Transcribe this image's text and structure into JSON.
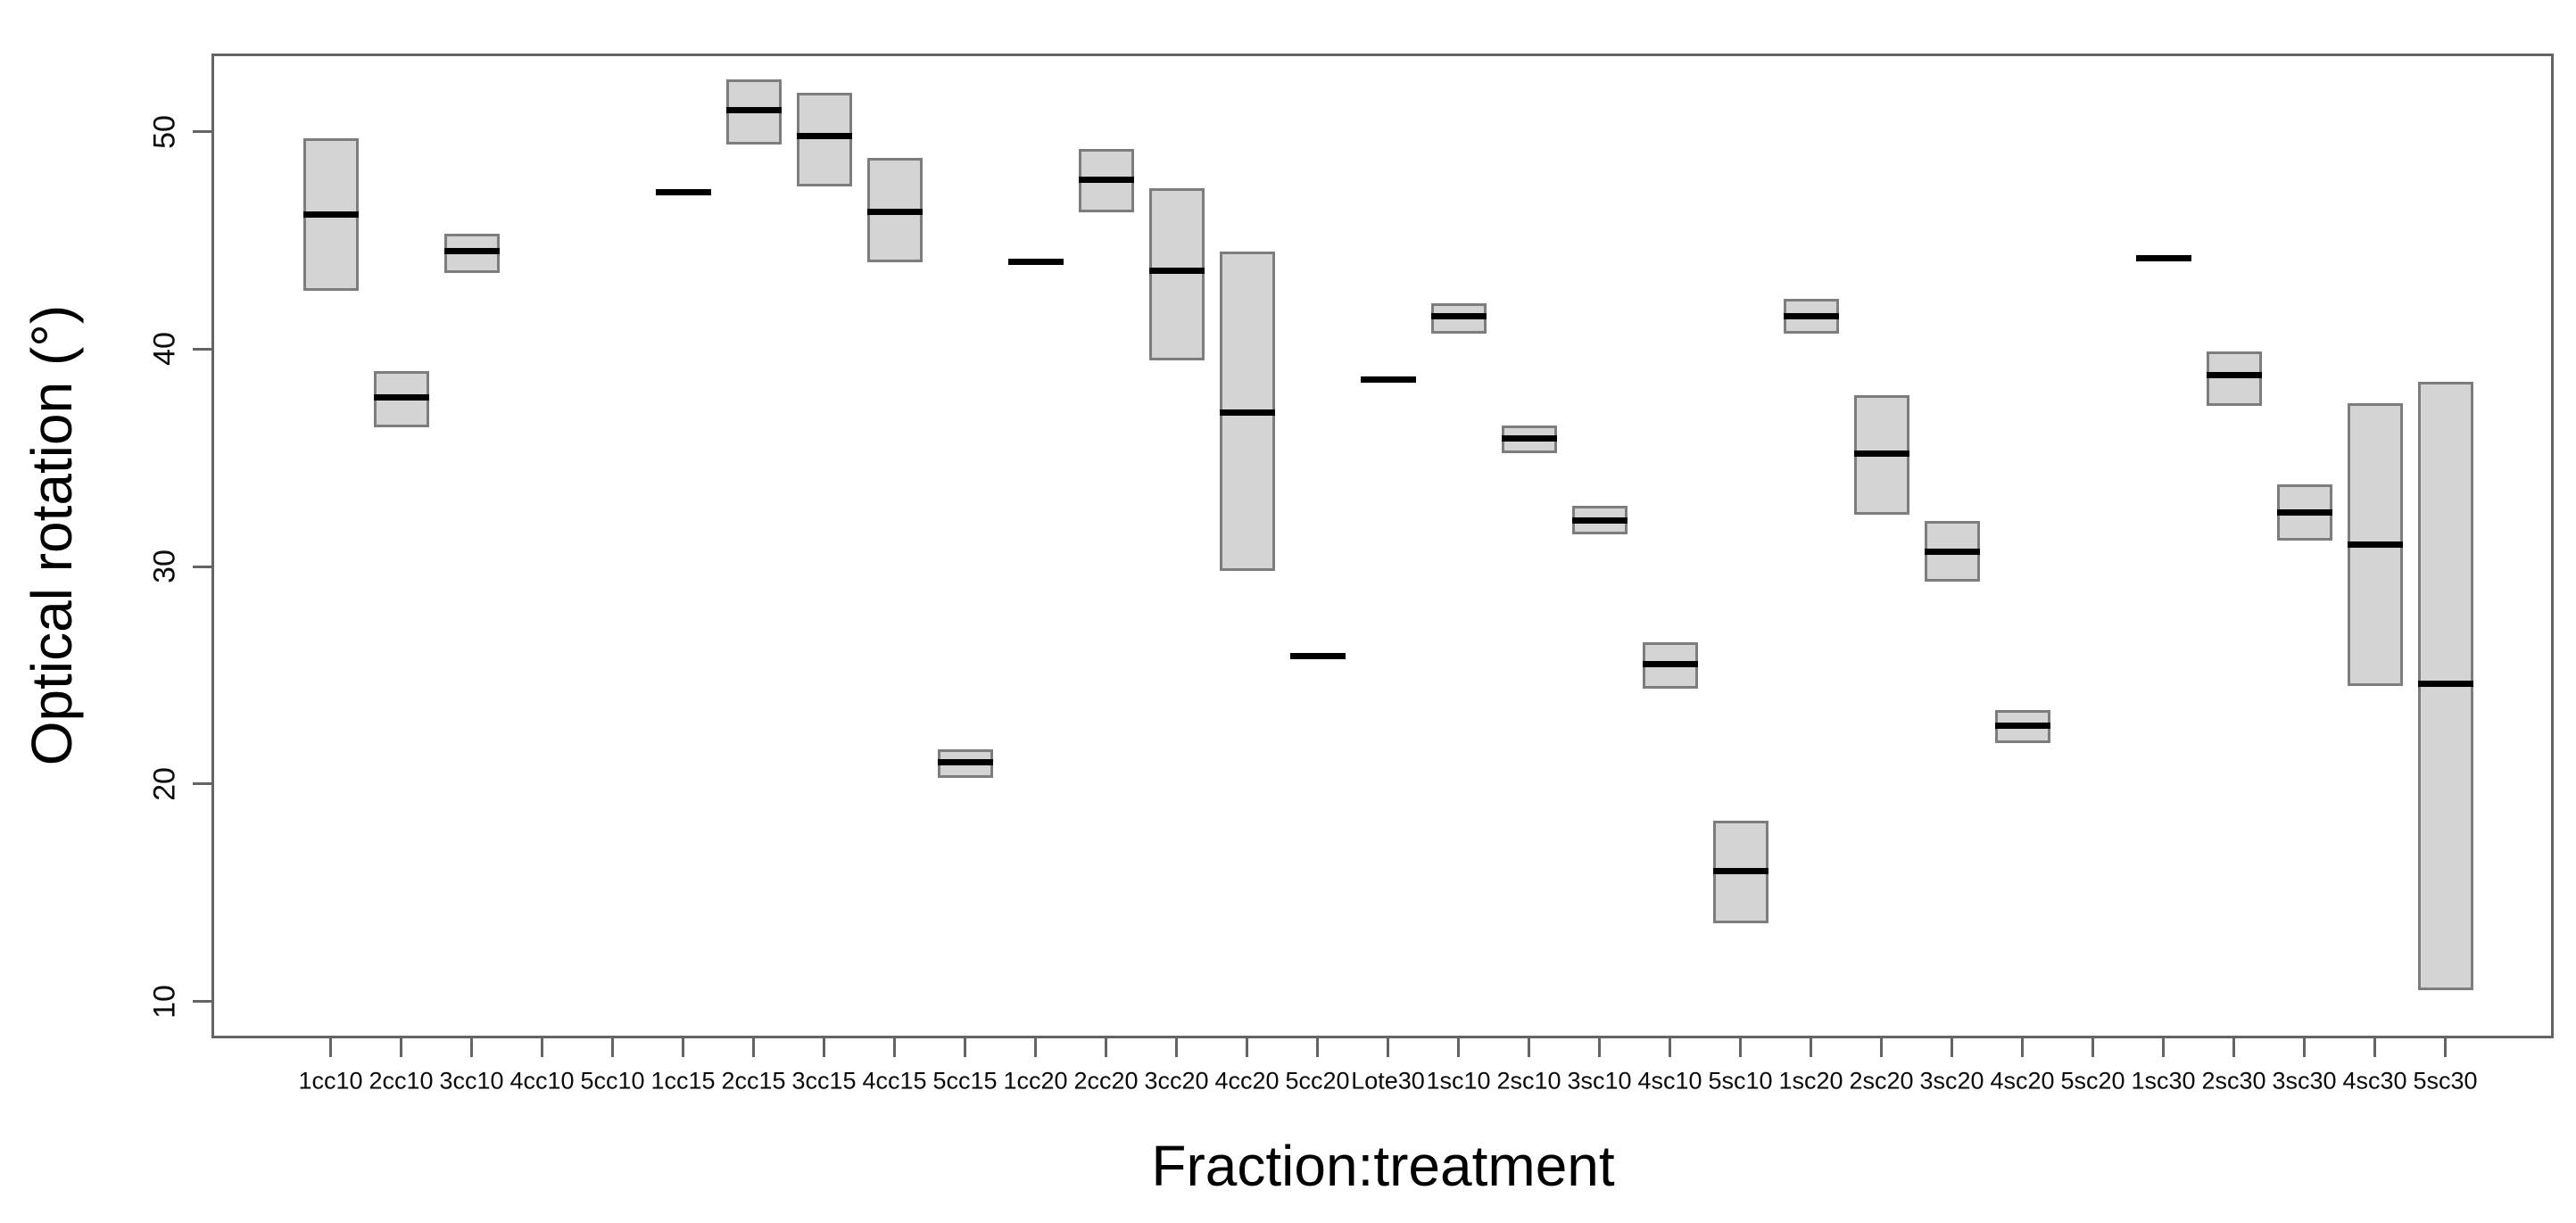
{
  "chart_data": {
    "type": "boxplot",
    "title": "",
    "xlabel": "Fraction:treatment",
    "ylabel": "Optical rotation (°)",
    "ylim": [
      8.3,
      53.6
    ],
    "yticks": [
      10,
      20,
      30,
      40,
      50
    ],
    "grid": false,
    "legend": null,
    "colors": {
      "box_fill": "#d4d4d4",
      "box_border": "#7d7d7d",
      "median": "#000000",
      "axis": "#646464",
      "text": "#0a0a0a",
      "background": "#ffffff"
    },
    "categories": [
      "1cc10",
      "2cc10",
      "3cc10",
      "4cc10",
      "5cc10",
      "1cc15",
      "2cc15",
      "3cc15",
      "4cc15",
      "5cc15",
      "1cc20",
      "2cc20",
      "3cc20",
      "4cc20",
      "5cc20",
      "Lote30",
      "1sc10",
      "2sc10",
      "3sc10",
      "4sc10",
      "5sc10",
      "1sc20",
      "2sc20",
      "3sc20",
      "4sc20",
      "5sc20",
      "1sc30",
      "2sc30",
      "3sc30",
      "4sc30",
      "5sc30"
    ],
    "boxes": [
      {
        "category": "1cc10",
        "q1": 42.7,
        "median": 46.2,
        "q3": 49.7
      },
      {
        "category": "2cc10",
        "q1": 36.4,
        "median": 37.8,
        "q3": 39.0
      },
      {
        "category": "3cc10",
        "q1": 43.5,
        "median": 44.5,
        "q3": 45.3
      },
      {
        "category": "4cc10",
        "q1": null,
        "median": null,
        "q3": null
      },
      {
        "category": "5cc10",
        "q1": null,
        "median": null,
        "q3": null
      },
      {
        "category": "1cc15",
        "q1": 47.2,
        "median": 47.2,
        "q3": 47.2
      },
      {
        "category": "2cc15",
        "q1": 49.4,
        "median": 51.0,
        "q3": 52.4
      },
      {
        "category": "3cc15",
        "q1": 47.5,
        "median": 49.8,
        "q3": 51.8
      },
      {
        "category": "4cc15",
        "q1": 44.0,
        "median": 46.3,
        "q3": 48.8
      },
      {
        "category": "5cc15",
        "q1": 20.3,
        "median": 21.0,
        "q3": 21.6
      },
      {
        "category": "1cc20",
        "q1": 44.0,
        "median": 44.0,
        "q3": 44.0
      },
      {
        "category": "2cc20",
        "q1": 46.3,
        "median": 47.8,
        "q3": 49.2
      },
      {
        "category": "3cc20",
        "q1": 39.5,
        "median": 43.6,
        "q3": 47.4
      },
      {
        "category": "4cc20",
        "q1": 29.8,
        "median": 37.1,
        "q3": 44.5
      },
      {
        "category": "5cc20",
        "q1": 25.9,
        "median": 25.9,
        "q3": 25.9
      },
      {
        "category": "Lote30",
        "q1": 38.6,
        "median": 38.6,
        "q3": 38.6
      },
      {
        "category": "1sc10",
        "q1": 40.7,
        "median": 41.5,
        "q3": 42.1
      },
      {
        "category": "2sc10",
        "q1": 35.2,
        "median": 35.9,
        "q3": 36.5
      },
      {
        "category": "3sc10",
        "q1": 31.5,
        "median": 32.1,
        "q3": 32.8
      },
      {
        "category": "4sc10",
        "q1": 24.4,
        "median": 25.5,
        "q3": 26.5
      },
      {
        "category": "5sc10",
        "q1": 13.6,
        "median": 16.0,
        "q3": 18.3
      },
      {
        "category": "1sc20",
        "q1": 40.7,
        "median": 41.5,
        "q3": 42.3
      },
      {
        "category": "2sc20",
        "q1": 32.4,
        "median": 35.2,
        "q3": 37.9
      },
      {
        "category": "3sc20",
        "q1": 29.3,
        "median": 30.7,
        "q3": 32.1
      },
      {
        "category": "4sc20",
        "q1": 21.9,
        "median": 22.7,
        "q3": 23.4
      },
      {
        "category": "5sc20",
        "q1": null,
        "median": null,
        "q3": null
      },
      {
        "category": "1sc30",
        "q1": 44.2,
        "median": 44.2,
        "q3": 44.2
      },
      {
        "category": "2sc30",
        "q1": 37.4,
        "median": 38.8,
        "q3": 39.9
      },
      {
        "category": "3sc30",
        "q1": 31.2,
        "median": 32.5,
        "q3": 33.8
      },
      {
        "category": "4sc30",
        "q1": 24.5,
        "median": 31.0,
        "q3": 37.5
      },
      {
        "category": "5sc30",
        "q1": 10.5,
        "median": 24.6,
        "q3": 38.5
      }
    ]
  }
}
